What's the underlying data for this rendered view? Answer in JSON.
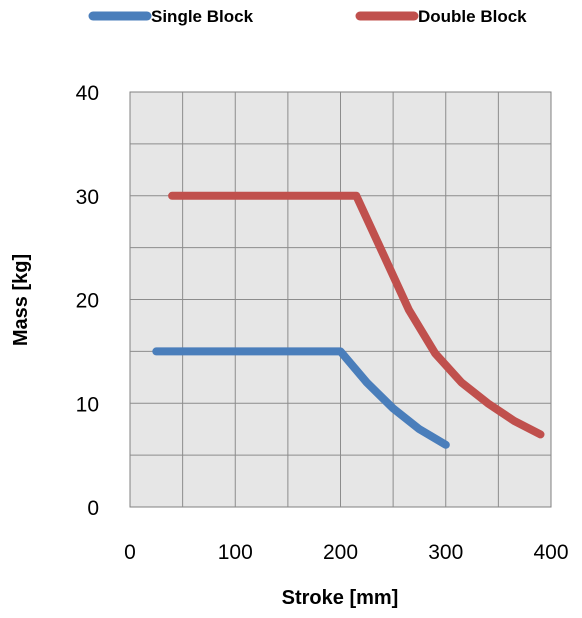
{
  "chart_data": {
    "type": "line",
    "title": "",
    "xlabel": "Stroke [mm]",
    "ylabel": "Mass [kg]",
    "xlim": [
      0,
      400
    ],
    "ylim": [
      0,
      40
    ],
    "x_ticks": [
      0,
      100,
      200,
      300,
      400
    ],
    "y_ticks": [
      0,
      10,
      20,
      30,
      40
    ],
    "x_tick_labels": [
      "0",
      "100",
      "200",
      "300",
      "400"
    ],
    "y_tick_labels": [
      "0",
      "10",
      "20",
      "30",
      "40"
    ],
    "minor_x_step": 50,
    "minor_y_step": 5,
    "grid": true,
    "legend_position": "top",
    "series": [
      {
        "name": "Single Block",
        "color": "#4A7EBB",
        "x": [
          25,
          50,
          100,
          150,
          200,
          225,
          250,
          275,
          300
        ],
        "y": [
          15,
          15,
          15,
          15,
          15,
          12,
          9.5,
          7.5,
          6
        ]
      },
      {
        "name": "Double Block",
        "color": "#C0504D",
        "x": [
          40,
          100,
          150,
          200,
          215,
          240,
          265,
          290,
          315,
          340,
          365,
          390
        ],
        "y": [
          30,
          30,
          30,
          30,
          30,
          24.5,
          19,
          14.8,
          12,
          10,
          8.3,
          7
        ]
      }
    ]
  }
}
